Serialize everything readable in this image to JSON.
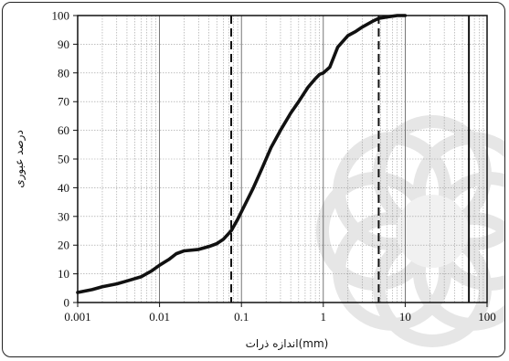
{
  "chart_data": {
    "type": "line",
    "xlabel": "اندازه ذرات(mm)",
    "ylabel": "درصد عبوری",
    "xscale": "log",
    "xlim": [
      0.001,
      100
    ],
    "ylim": [
      0,
      100
    ],
    "grid": true,
    "x_ticks": [
      "0.001",
      "0.01",
      "0.1",
      "1",
      "10",
      "100"
    ],
    "y_ticks": [
      "0",
      "10",
      "20",
      "30",
      "40",
      "50",
      "60",
      "70",
      "80",
      "90",
      "100"
    ],
    "series": [
      {
        "x": [
          0.001,
          0.0015,
          0.002,
          0.003,
          0.004,
          0.006,
          0.008,
          0.01,
          0.013,
          0.016,
          0.02,
          0.03,
          0.04,
          0.05,
          0.06,
          0.075,
          0.09,
          0.11,
          0.14,
          0.18,
          0.23,
          0.3,
          0.4,
          0.5,
          0.65,
          0.8,
          0.9,
          1.0,
          1.2,
          1.5,
          2.0,
          2.5,
          3.0,
          4.0,
          4.75,
          6.0,
          8.0,
          10.0
        ],
        "y": [
          3.5,
          4.5,
          5.5,
          6.5,
          7.5,
          9,
          11,
          13,
          15,
          17,
          18,
          18.5,
          19.5,
          20.5,
          22,
          25,
          29,
          34,
          40,
          47,
          54,
          60,
          66,
          70,
          75,
          78,
          79.5,
          80,
          82,
          89,
          93,
          94.5,
          96,
          98,
          99,
          99.5,
          100,
          100
        ]
      }
    ],
    "reference_lines": [
      {
        "x": 0.075,
        "style": "dashed"
      },
      {
        "x": 4.75,
        "style": "dashed"
      },
      {
        "x": 60,
        "style": "solid"
      }
    ],
    "watermark": "decorative-logo"
  }
}
